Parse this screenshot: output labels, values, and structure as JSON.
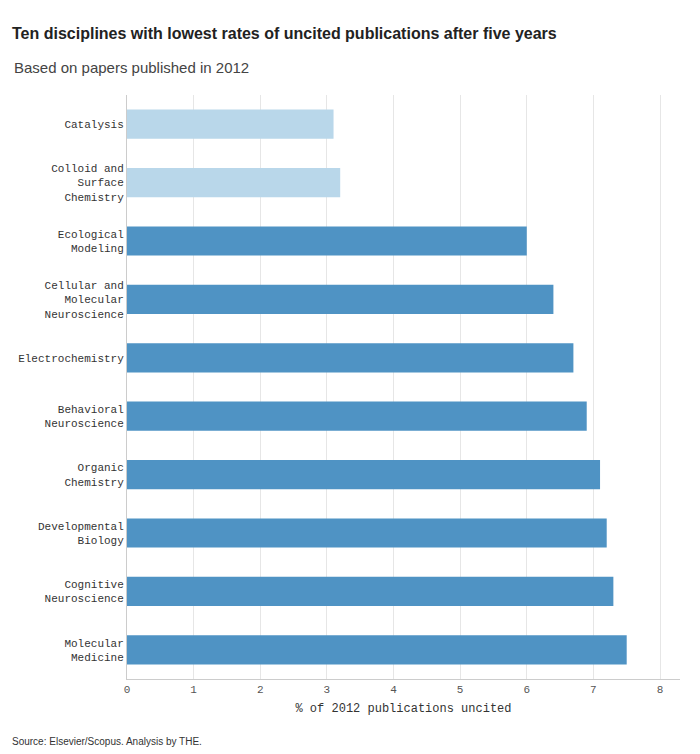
{
  "chart_data": {
    "type": "bar",
    "orientation": "horizontal",
    "title": "Ten disciplines with lowest rates of uncited publications after five years",
    "subtitle": "Based on papers published in 2012",
    "x_label": "% of 2012 publications uncited",
    "source": "Source: Elsevier/Scopus. Analysis by THE.",
    "categories": [
      "Catalysis",
      "Colloid and Surface Chemistry",
      "Ecological Modeling",
      "Cellular and Molecular Neuroscience",
      "Electrochemistry",
      "Behavioral Neuroscience",
      "Organic Chemistry",
      "Developmental Biology",
      "Cognitive Neuroscience",
      "Molecular Medicine"
    ],
    "values": [
      3.1,
      3.2,
      6.0,
      6.4,
      6.7,
      6.9,
      7.1,
      7.2,
      7.3,
      7.5
    ],
    "colors": [
      "#b9d7ea",
      "#b9d7ea",
      "#4f93c4",
      "#4f93c4",
      "#4f93c4",
      "#4f93c4",
      "#4f93c4",
      "#4f93c4",
      "#4f93c4",
      "#4f93c4"
    ],
    "xlim": [
      0,
      8.3
    ],
    "xticks": [
      0,
      1,
      2,
      3,
      4,
      5,
      6,
      7,
      8
    ],
    "grid": true
  }
}
